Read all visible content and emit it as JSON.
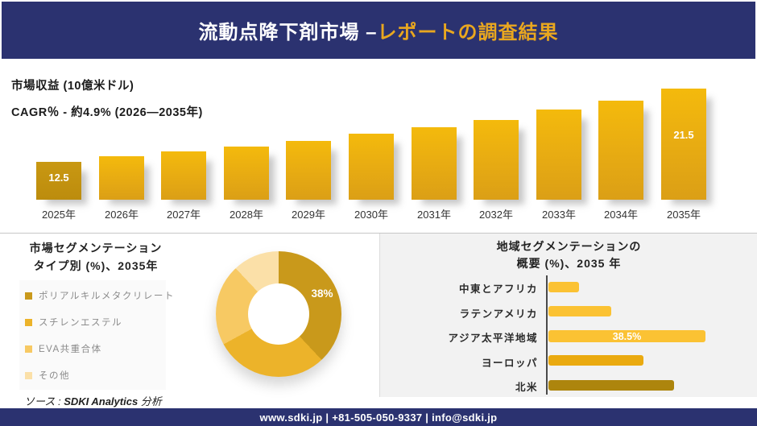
{
  "colors": {
    "navy": "#2b3270",
    "gold_title": "#e9a71f",
    "panel_gray": "#f2f2f2"
  },
  "header": {
    "title_white": "流動点降下剤市場 –",
    "title_gold": "レポートの調査結果"
  },
  "revenue_section": {
    "metric_label": "市場収益 (10億米ドル)",
    "cagr_label": "CAGR％ - 約4.9% (2026―2035年)"
  },
  "type_section": {
    "title_line1": "市場セグメンテーション",
    "title_line2": "タイプ別 (%)、2035年"
  },
  "region_section": {
    "title_line1": "地域セグメンテーションの",
    "title_line2": "概要 (%)、2035 年"
  },
  "source": {
    "prefix": "ソース : ",
    "name": "SDKI Analytics",
    "suffix": " 分析"
  },
  "footer": {
    "contact": "www.sdki.jp | +81-505-050-9337 | info@sdki.jp"
  },
  "chart_data": [
    {
      "type": "bar",
      "title": "市場収益 (10億米ドル)",
      "subtitle": "CAGR％ - 約4.9% (2026―2035年)",
      "ylabel": "10億米ドル",
      "categories": [
        "2025年",
        "2026年",
        "2027年",
        "2028年",
        "2029年",
        "2030年",
        "2031年",
        "2032年",
        "2033年",
        "2034年",
        "2035年"
      ],
      "values": [
        12.5,
        13.2,
        13.8,
        14.4,
        15.1,
        16.0,
        16.8,
        17.6,
        18.9,
        20.0,
        21.5
      ],
      "data_labels": {
        "2025年": "12.5",
        "2035年": "21.5"
      },
      "grid": false,
      "bar_color_first": [
        "#c99812",
        "#bc8c0d"
      ],
      "bar_color_rest": [
        "#f4ba0c",
        "#e8ac12",
        "#db9f16"
      ]
    },
    {
      "type": "pie",
      "subtype": "donut",
      "title": "市場セグメンテーション タイプ別 (%)、2035年",
      "labels": [
        "ポリアルキルメタクリレート",
        "スチレンエステル",
        "EVA共重合体",
        "その他"
      ],
      "values": [
        38,
        29,
        21,
        12
      ],
      "data_labels": {
        "ポリアルキルメタクリレート": "38%"
      },
      "colors": [
        "#c9991b",
        "#ecb32a",
        "#f7c963",
        "#fbe0a8"
      ],
      "donut_hole_ratio": 0.48,
      "legend_position": "left",
      "start_angle_deg": 0
    },
    {
      "type": "bar",
      "orientation": "horizontal",
      "title": "地域セグメンテーションの概要 (%)、2035 年",
      "categories": [
        "中東とアフリカ",
        "ラテンアメリカ",
        "アジア太平洋地域",
        "ヨーロッパ",
        "北米"
      ],
      "values": [
        7.5,
        15.4,
        38.5,
        23.3,
        30.8
      ],
      "data_labels": {
        "アジア太平洋地域": "38.5%"
      },
      "colors": [
        "#fbc233",
        "#fbc233",
        "#fbc233",
        "#eaaa10",
        "#ad850d"
      ],
      "grid": false
    }
  ]
}
